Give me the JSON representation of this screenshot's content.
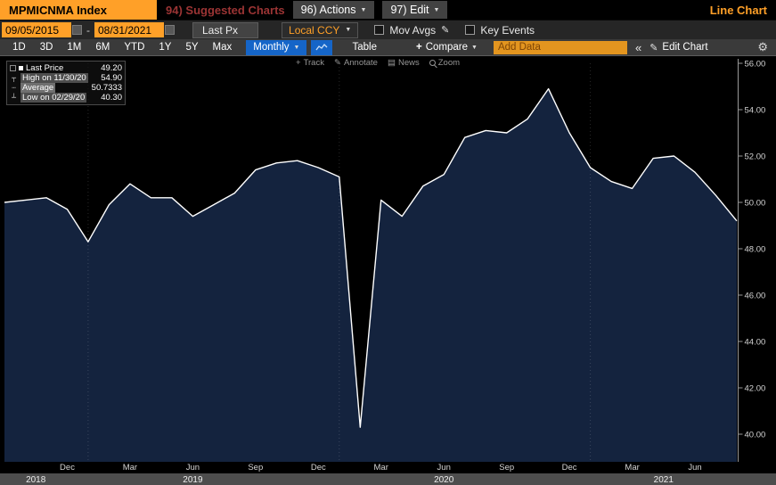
{
  "icons": {
    "chevron_down": "▼",
    "pencil": "✎",
    "gear": "⚙",
    "plus": "+",
    "double_chevron_left": "«",
    "news": "▤",
    "square_bullet": "■",
    "high_marker": "┬",
    "avg_marker": "┄",
    "low_marker": "┴"
  },
  "titlebar": {
    "security": "MPMICNMA Index",
    "suggested_charts": "94) Suggested Charts",
    "actions": "96) Actions",
    "edit": "97) Edit",
    "view_label": "Line Chart"
  },
  "controls": {
    "date_from": "09/05/2015",
    "date_to": "08/31/2021",
    "separator": "-",
    "price_field": "Last Px",
    "currency": "Local CCY",
    "mov_avgs_label": "Mov Avgs",
    "key_events_label": "Key Events"
  },
  "toolbar": {
    "periods": [
      "1D",
      "3D",
      "1M",
      "6M",
      "YTD",
      "1Y",
      "5Y",
      "Max"
    ],
    "frequency": "Monthly",
    "table_label": "Table",
    "compare_label": "Compare",
    "add_data_placeholder": "Add Data",
    "edit_chart_label": "Edit Chart"
  },
  "chart_toolbar": {
    "track": "Track",
    "annotate": "Annotate",
    "news": "News",
    "zoom": "Zoom"
  },
  "legend": {
    "rows": [
      {
        "label": "Last Price",
        "value": "49.20"
      },
      {
        "label": "High on 11/30/20",
        "value": "54.90"
      },
      {
        "label": "Average",
        "value": "50.7333"
      },
      {
        "label": "Low on 02/29/20",
        "value": "40.30"
      }
    ]
  },
  "chart_data": {
    "type": "area",
    "title": "MPMICNMA Index - Last Px (Monthly) - Line Chart",
    "months": [
      "Sep 2018",
      "Oct 2018",
      "Nov 2018",
      "Dec 2018",
      "Jan 2019",
      "Feb 2019",
      "Mar 2019",
      "Apr 2019",
      "May 2019",
      "Jun 2019",
      "Jul 2019",
      "Aug 2019",
      "Sep 2019",
      "Oct 2019",
      "Nov 2019",
      "Dec 2019",
      "Jan 2020",
      "Feb 2020",
      "Mar 2020",
      "Apr 2020",
      "May 2020",
      "Jun 2020",
      "Jul 2020",
      "Aug 2020",
      "Sep 2020",
      "Oct 2020",
      "Nov 2020",
      "Dec 2020",
      "Jan 2021",
      "Feb 2021",
      "Mar 2021",
      "Apr 2021",
      "May 2021",
      "Jun 2021",
      "Jul 2021",
      "Aug 2021"
    ],
    "values": [
      50.0,
      50.1,
      50.2,
      49.7,
      48.3,
      49.9,
      50.8,
      50.2,
      50.2,
      49.4,
      49.9,
      50.4,
      51.4,
      51.7,
      51.8,
      51.5,
      51.1,
      40.3,
      50.1,
      49.4,
      50.7,
      51.2,
      52.8,
      53.1,
      53.0,
      53.6,
      54.9,
      53.0,
      51.5,
      50.9,
      50.6,
      51.9,
      52.0,
      51.3,
      50.3,
      49.2
    ],
    "ylim": [
      38.8,
      56.6
    ],
    "yticks": [
      {
        "v": 56,
        "label": "56.00"
      },
      {
        "v": 54,
        "label": "54.00"
      },
      {
        "v": 52,
        "label": "52.00"
      },
      {
        "v": 50,
        "label": "50.00"
      },
      {
        "v": 48,
        "label": "48.00"
      },
      {
        "v": 46,
        "label": "46.00"
      },
      {
        "v": 44,
        "label": "44.00"
      },
      {
        "v": 42,
        "label": "42.00"
      },
      {
        "v": 40,
        "label": "40.00"
      }
    ],
    "x_tick_labels": [
      {
        "index": 3,
        "label": "Dec"
      },
      {
        "index": 6,
        "label": "Mar"
      },
      {
        "index": 9,
        "label": "Jun"
      },
      {
        "index": 12,
        "label": "Sep"
      },
      {
        "index": 15,
        "label": "Dec"
      },
      {
        "index": 18,
        "label": "Mar"
      },
      {
        "index": 21,
        "label": "Jun"
      },
      {
        "index": 24,
        "label": "Sep"
      },
      {
        "index": 27,
        "label": "Dec"
      },
      {
        "index": 30,
        "label": "Mar"
      },
      {
        "index": 33,
        "label": "Jun"
      }
    ],
    "year_labels": [
      {
        "center_index": 1.5,
        "label": "2018"
      },
      {
        "center_index": 9.0,
        "label": "2019"
      },
      {
        "center_index": 21.0,
        "label": "2020"
      },
      {
        "center_index": 31.5,
        "label": "2021"
      }
    ],
    "year_separator_indices": [
      4,
      16,
      28
    ],
    "line_color": "#FFFFFF",
    "fill_color": "#14233E",
    "background": "#000000",
    "grid": "off",
    "legend_position": "top-left"
  }
}
